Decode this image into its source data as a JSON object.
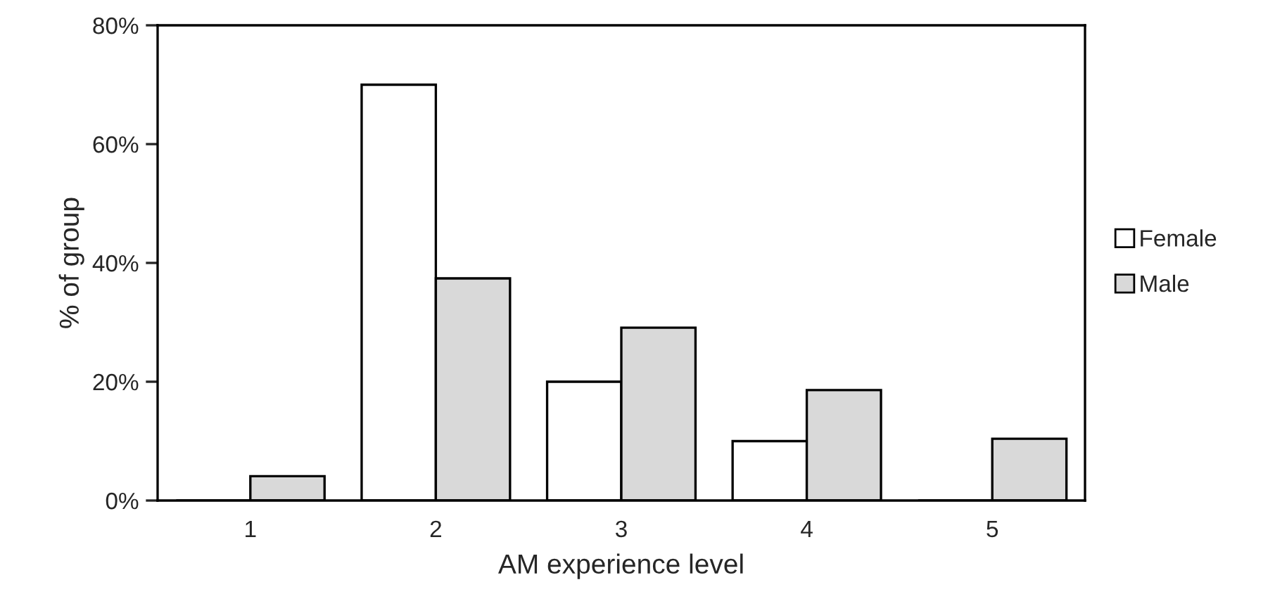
{
  "chart_data": {
    "type": "bar",
    "xlabel": "AM experience level",
    "ylabel": "% of group",
    "categories": [
      "1",
      "2",
      "3",
      "4",
      "5"
    ],
    "series": [
      {
        "name": "Female",
        "color": "#ffffff",
        "values": [
          0,
          70.0,
          20.0,
          10.0,
          0
        ]
      },
      {
        "name": "Male",
        "color": "#d9d9d9",
        "values": [
          4.1,
          37.4,
          29.1,
          18.6,
          10.4
        ]
      }
    ],
    "ylim": [
      0,
      80
    ],
    "yticks": [
      {
        "value": 0,
        "label": "0%"
      },
      {
        "value": 20,
        "label": "20%"
      },
      {
        "value": 40,
        "label": "40%"
      },
      {
        "value": 60,
        "label": "60%"
      },
      {
        "value": 80,
        "label": "80%"
      }
    ],
    "grid": false,
    "legend": "right"
  }
}
